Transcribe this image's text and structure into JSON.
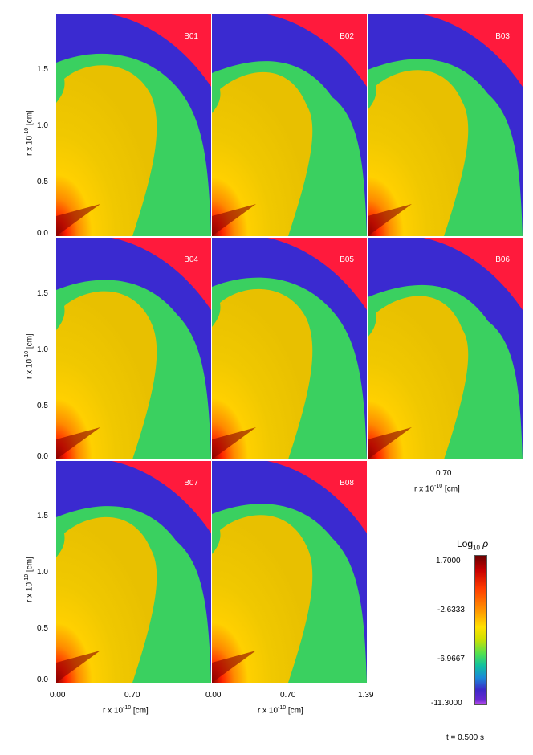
{
  "chart_data": {
    "type": "heatmap",
    "quantity": "Log10 ρ",
    "panels": [
      "B01",
      "B02",
      "B03",
      "B04",
      "B05",
      "B06",
      "B07",
      "B08"
    ],
    "yticks": [
      "0.0",
      "0.5",
      "1.0",
      "1.5"
    ],
    "xticks": [
      "0.00",
      "0.70",
      "1.39"
    ],
    "xlabel": "r x 10",
    "ylabel": "r x 10",
    "exponent": "-10",
    "unit": "[cm]",
    "colorbar": {
      "title_prefix": "Log",
      "title_sub": "10",
      "title_symbol": "ρ",
      "ticks": [
        "1.7000",
        "-2.6333",
        "-6.9667",
        "-11.3000"
      ]
    },
    "time_label": "t = 0.500 s"
  },
  "colors": {
    "outer": "#ff1a3c",
    "shell": "#3a2ad0",
    "halo": "#3ad060",
    "core": "#ffd000",
    "dense": "#8a0000"
  }
}
